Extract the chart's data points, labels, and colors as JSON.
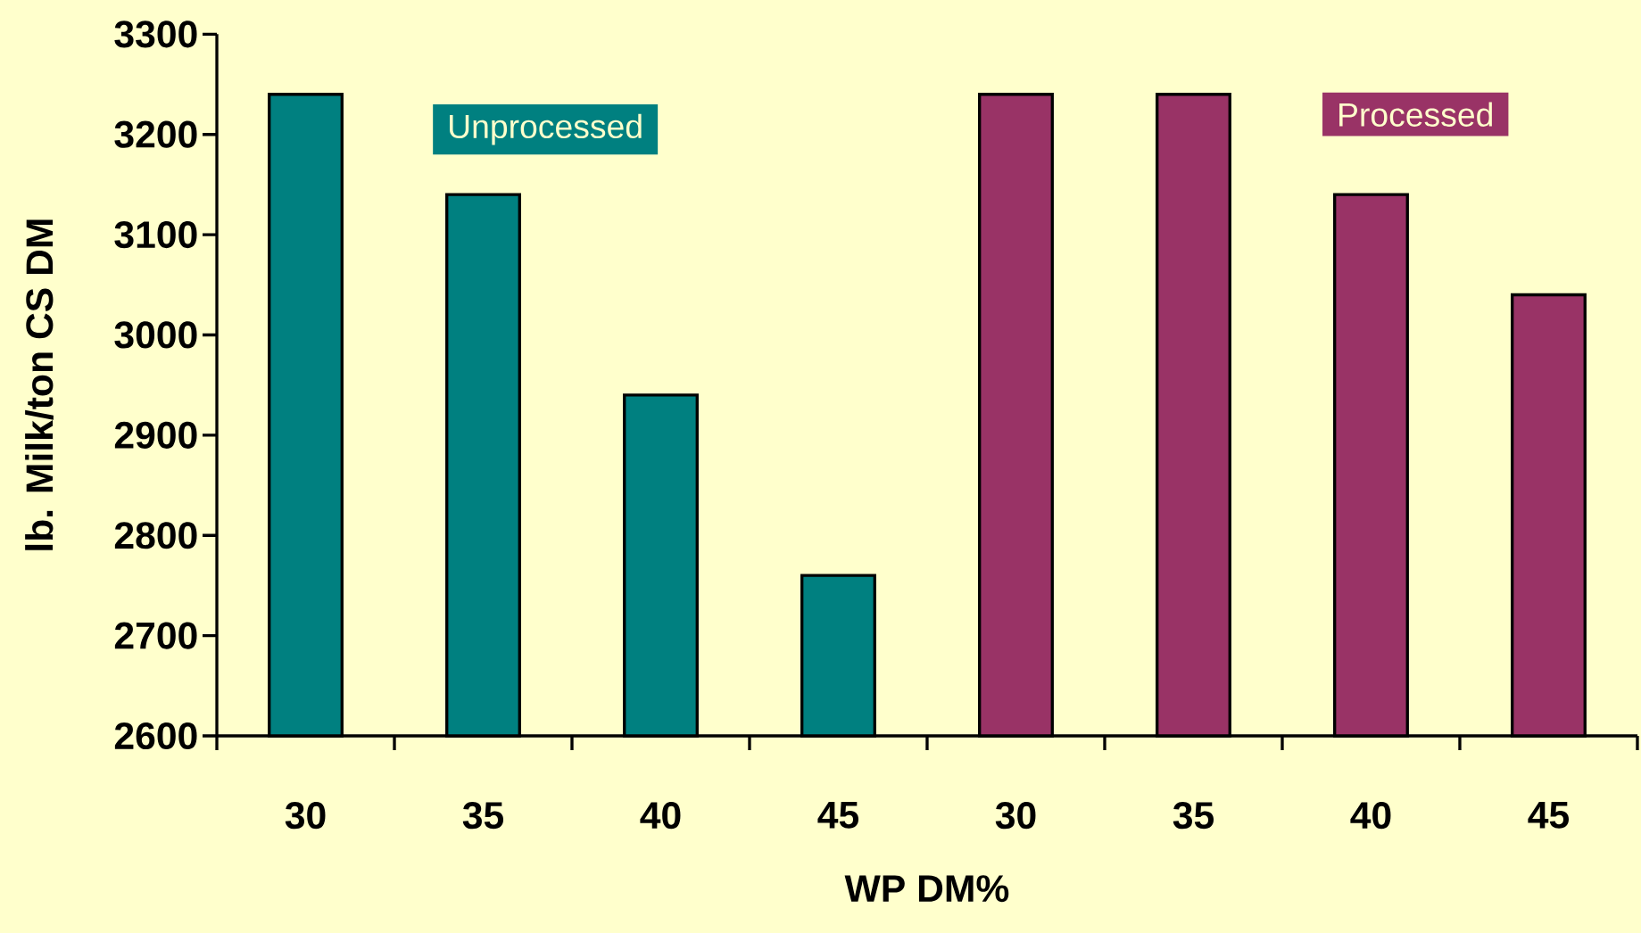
{
  "chart_data": {
    "type": "bar",
    "xlabel": "WP DM%",
    "ylabel": "lb. Milk/ton CS DM",
    "categories": [
      "30",
      "35",
      "40",
      "45",
      "30",
      "35",
      "40",
      "45"
    ],
    "series": [
      {
        "name": "Unprocessed",
        "color": "#008080",
        "values": [
          3240,
          3140,
          2940,
          2760,
          null,
          null,
          null,
          null
        ]
      },
      {
        "name": "Processed",
        "color": "#993366",
        "values": [
          null,
          null,
          null,
          null,
          3240,
          3240,
          3140,
          3040
        ]
      }
    ],
    "ylim": [
      2600,
      3300
    ],
    "yticks": [
      2600,
      2700,
      2800,
      2900,
      3000,
      3100,
      3200,
      3300
    ],
    "grid": false,
    "legend": false
  }
}
